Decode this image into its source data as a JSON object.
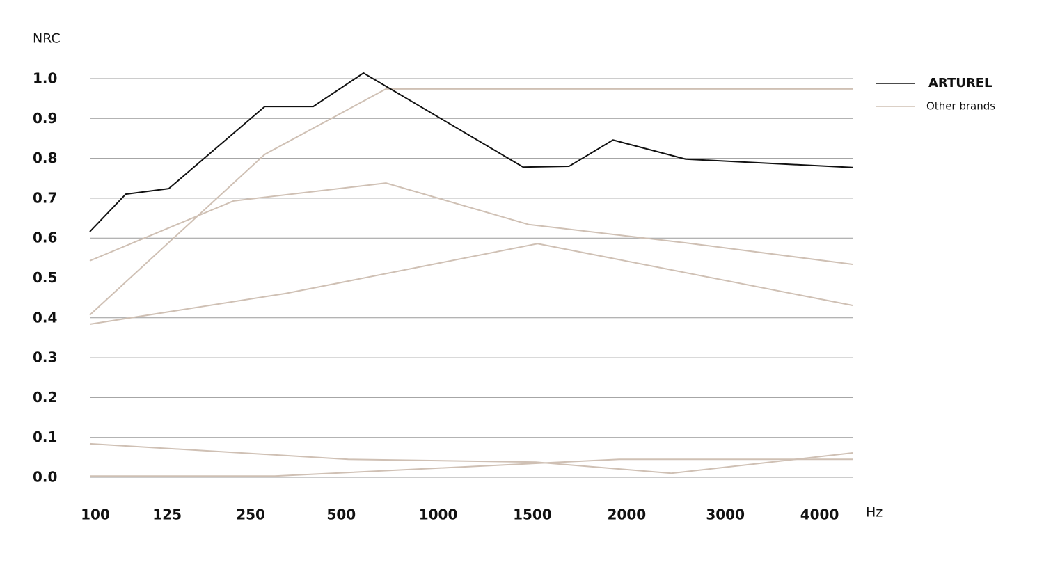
{
  "chart_data": {
    "type": "line",
    "y_label": "NRC",
    "x_label": "Hz",
    "xlim": [
      0,
      8.5
    ],
    "xticks": [
      {
        "value": 0,
        "label": "100"
      },
      {
        "value": 0.8,
        "label": "125"
      },
      {
        "value": 1.73,
        "label": "250"
      },
      {
        "value": 2.74,
        "label": "500"
      },
      {
        "value": 3.82,
        "label": "1000"
      },
      {
        "value": 4.87,
        "label": "1500"
      },
      {
        "value": 5.92,
        "label": "2000"
      },
      {
        "value": 7.02,
        "label": "3000"
      },
      {
        "value": 8.07,
        "label": "4000"
      }
    ],
    "ylim": [
      0,
      1.05
    ],
    "yticks": [
      {
        "value": 0,
        "label": "0.0"
      },
      0.1,
      0.2,
      0.3,
      0.4,
      0.5,
      0.6,
      0.7,
      0.8,
      0.9,
      {
        "value": 1,
        "label": "1.0"
      }
    ],
    "grid": true,
    "legend": "top-right",
    "series": [
      {
        "name": "ARTUREL",
        "color": "#111111",
        "x": [
          0,
          0.4,
          0.88,
          1.95,
          2.49,
          3.05,
          4.83,
          5.34,
          5.83,
          6.64,
          8.5
        ],
        "values": [
          0.616,
          0.71,
          0.724,
          0.93,
          0.93,
          1.014,
          0.778,
          0.78,
          0.846,
          0.798,
          0.777
        ]
      },
      {
        "name": "Other brands",
        "color": "#cfc0b4",
        "x": [
          0,
          1.95,
          3.3,
          8.5
        ],
        "values": [
          0.407,
          0.81,
          0.974,
          0.974
        ]
      },
      {
        "name": "Other brands",
        "color": "#cfc0b4",
        "x": [
          0,
          1.6,
          3.3,
          4.89,
          6.64,
          8.5
        ],
        "values": [
          0.543,
          0.693,
          0.738,
          0.634,
          0.588,
          0.534
        ]
      },
      {
        "name": "Other brands",
        "color": "#cfc0b4",
        "x": [
          0,
          2.18,
          4.99,
          8.5
        ],
        "values": [
          0.384,
          0.461,
          0.586,
          0.431
        ]
      },
      {
        "name": "Other brands",
        "color": "#cfc0b4",
        "x": [
          0,
          2.88,
          4.97,
          6.48,
          8.5
        ],
        "values": [
          0.084,
          0.045,
          0.038,
          0.01,
          0.061
        ]
      },
      {
        "name": "Other brands",
        "color": "#cfc0b4",
        "x": [
          0,
          2.06,
          5.9,
          8.5
        ],
        "values": [
          0.003,
          0.003,
          0.045,
          0.045
        ]
      }
    ]
  }
}
